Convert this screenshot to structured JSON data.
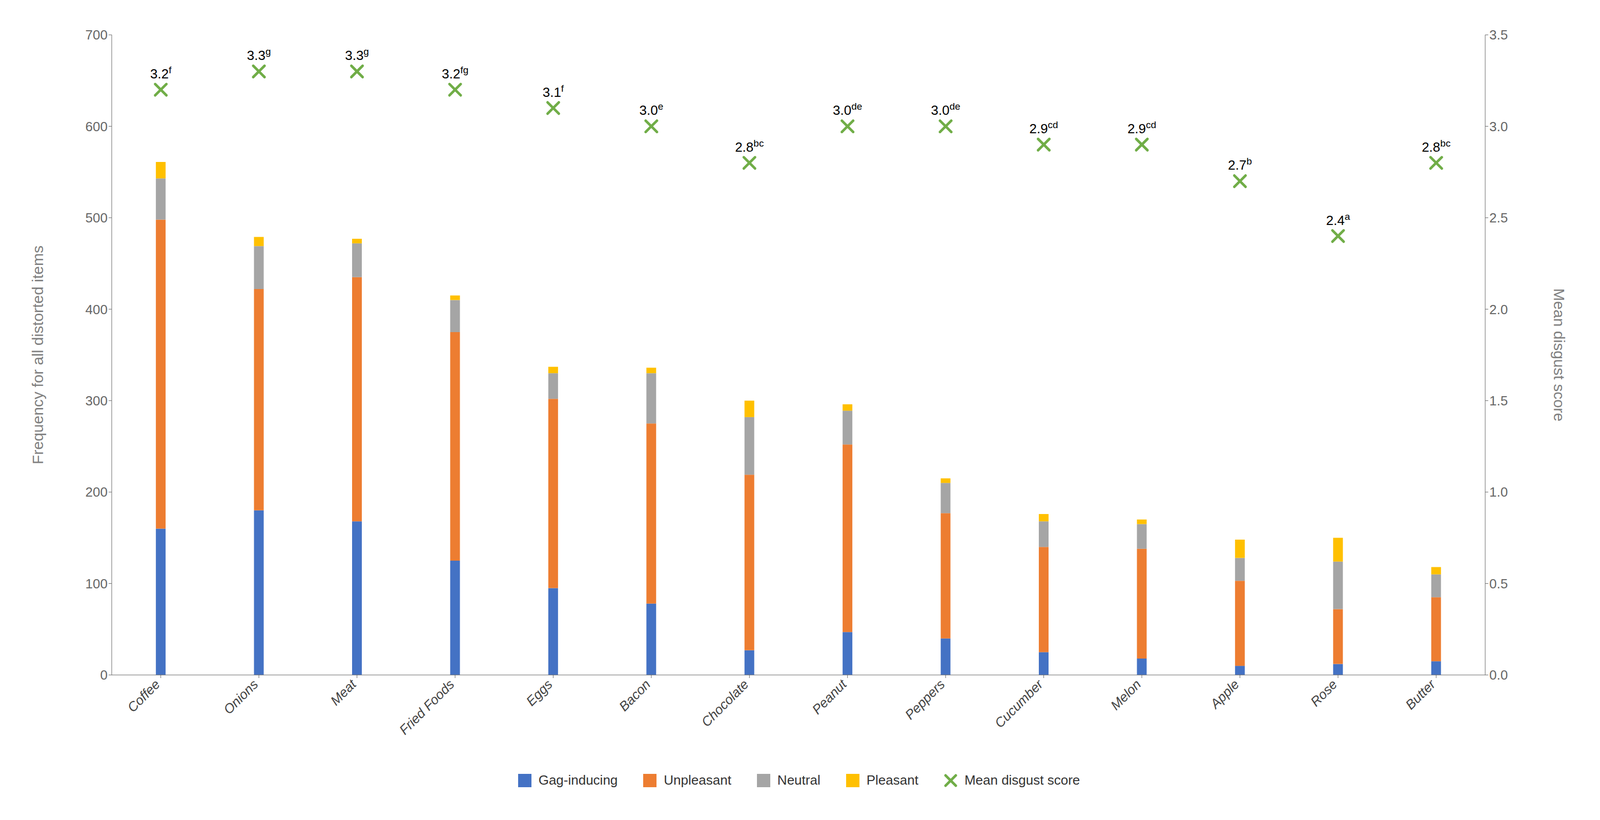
{
  "chart_data": {
    "type": "bar",
    "stacked": true,
    "categories": [
      "Coffee",
      "Onions",
      "Meat",
      "Fried Foods",
      "Eggs",
      "Bacon",
      "Chocolate",
      "Peanut",
      "Peppers",
      "Cucumber",
      "Melon",
      "Apple",
      "Rose",
      "Butter"
    ],
    "ylabel": "Frequency for all distorted items",
    "y2label": "Mean disgust score",
    "ylim": [
      0,
      700
    ],
    "yticks": [
      0,
      100,
      200,
      300,
      400,
      500,
      600,
      700
    ],
    "y2lim": [
      0,
      3.5
    ],
    "y2ticks": [
      {
        "value": 0,
        "label": "0.0"
      },
      0.5,
      {
        "value": 1,
        "label": "1.0"
      },
      1.5,
      {
        "value": 2,
        "label": "2.0"
      },
      2.5,
      {
        "value": 3,
        "label": "3.0"
      },
      3.5
    ],
    "legend": "bottom",
    "series": [
      {
        "name": "Gag-inducing",
        "color": "#4472C4",
        "values": [
          160,
          180,
          168,
          125,
          95,
          78,
          27,
          47,
          40,
          25,
          18,
          10,
          12,
          15
        ]
      },
      {
        "name": "Unpleasant",
        "color": "#ED7D31",
        "values": [
          338,
          242,
          267,
          250,
          207,
          197,
          192,
          205,
          137,
          115,
          120,
          93,
          60,
          70
        ]
      },
      {
        "name": "Neutral",
        "color": "#A5A5A5",
        "values": [
          45,
          47,
          37,
          35,
          28,
          55,
          63,
          37,
          33,
          28,
          27,
          25,
          52,
          25
        ]
      },
      {
        "name": "Pleasant",
        "color": "#FFC000",
        "values": [
          18,
          10,
          5,
          5,
          7,
          6,
          18,
          7,
          5,
          8,
          5,
          20,
          26,
          8
        ]
      },
      {
        "name": "Mean disgust score",
        "type": "scatter",
        "marker": "x",
        "axis": "y2",
        "color": "#70AD47",
        "data_labels": true,
        "values": [
          3.2,
          3.3,
          3.3,
          3.2,
          3.1,
          3.0,
          2.8,
          3.0,
          3.0,
          2.9,
          2.9,
          2.7,
          2.4,
          2.8
        ],
        "value_labels": [
          "3.2",
          "3.3",
          "3.3",
          "3.2",
          "3.1",
          "3.0",
          "2.8",
          "3.0",
          "3.0",
          "2.9",
          "2.9",
          "2.7",
          "2.4",
          "2.8"
        ],
        "annotations": [
          "f",
          "g",
          "g",
          "fg",
          "f",
          "e",
          "bc",
          "de",
          "de",
          "cd",
          "cd",
          "b",
          "a",
          "bc"
        ]
      }
    ]
  }
}
